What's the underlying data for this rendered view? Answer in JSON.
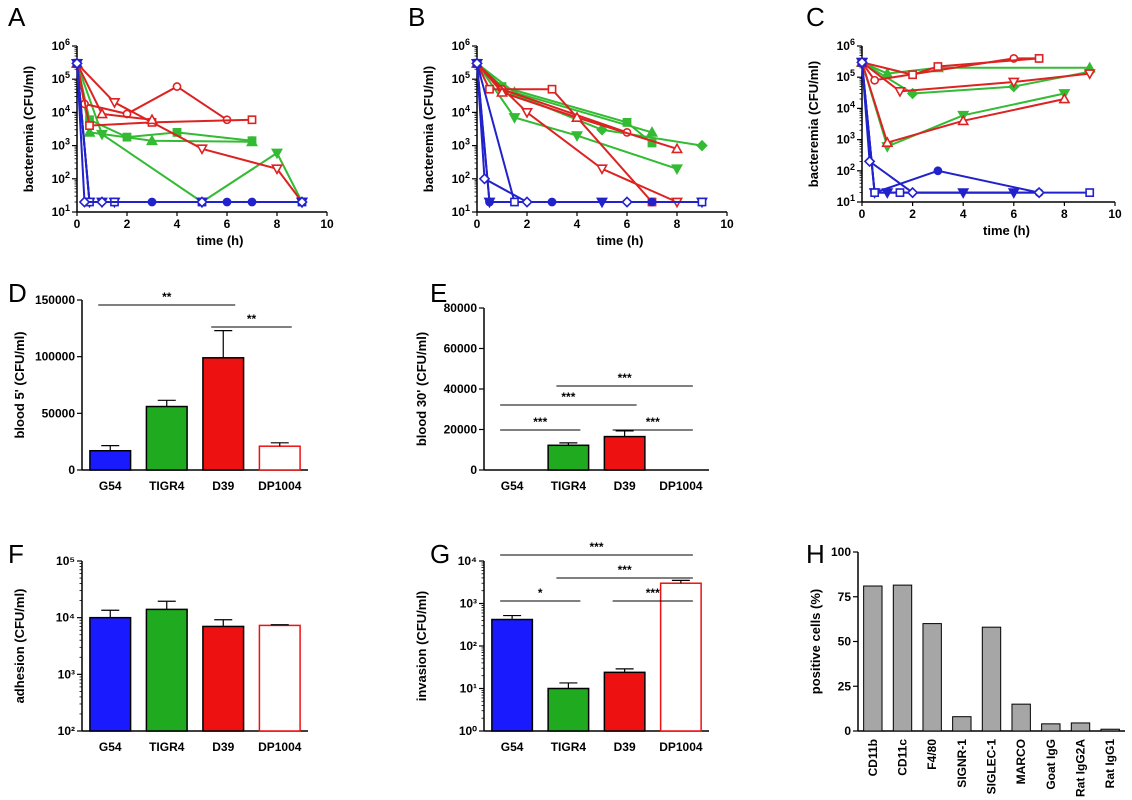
{
  "colors": {
    "G54": "#1a1aff",
    "TIGR4": "#1faa1f",
    "D39": "#ee1111",
    "DP1004": "#ee1111",
    "gray": "#a6a6a6",
    "green_line": "#33bb33",
    "red_line": "#dd2222",
    "blue_line": "#2222cc"
  },
  "chart_data": [
    {
      "panel": "A",
      "type": "line",
      "xlabel": "time (h)",
      "ylabel": "bacteremia (CFU/ml)",
      "xlim": [
        0,
        10
      ],
      "xticks": [
        "0",
        "2",
        "4",
        "6",
        "8",
        "10"
      ],
      "ylim_log10": [
        1,
        6
      ],
      "yscale": "log",
      "series": [
        {
          "group": "G54",
          "marker": "circle",
          "points": [
            [
              0,
              300000
            ],
            [
              0.5,
              20
            ],
            [
              3,
              20
            ],
            [
              6,
              20
            ],
            [
              7,
              20
            ]
          ]
        },
        {
          "group": "G54",
          "marker": "tri-down",
          "points": [
            [
              0,
              300000
            ],
            [
              0.5,
              20
            ],
            [
              1,
              20
            ],
            [
              1.5,
              20
            ],
            [
              5,
              20
            ],
            [
              9,
              20
            ]
          ]
        },
        {
          "group": "G54",
          "marker": "square-open",
          "points": [
            [
              0,
              300000
            ],
            [
              0.5,
              20
            ],
            [
              1.5,
              20
            ],
            [
              5,
              20
            ],
            [
              9,
              20
            ]
          ]
        },
        {
          "group": "G54",
          "marker": "diamond-open",
          "points": [
            [
              0,
              300000
            ],
            [
              0.3,
              20
            ],
            [
              1,
              20
            ],
            [
              5,
              20
            ],
            [
              9,
              20
            ]
          ]
        },
        {
          "group": "TIGR4",
          "marker": "square",
          "points": [
            [
              0,
              300000
            ],
            [
              0.5,
              6000
            ],
            [
              2,
              1800
            ],
            [
              4,
              2500
            ],
            [
              7,
              1400
            ]
          ]
        },
        {
          "group": "TIGR4",
          "marker": "tri-up",
          "points": [
            [
              0,
              300000
            ],
            [
              0.5,
              2500
            ],
            [
              3,
              1400
            ],
            [
              7,
              1300
            ]
          ]
        },
        {
          "group": "TIGR4",
          "marker": "tri-down",
          "points": [
            [
              0,
              300000
            ],
            [
              1,
              2200
            ],
            [
              5,
              20
            ],
            [
              8,
              600
            ],
            [
              9,
              20
            ]
          ]
        },
        {
          "group": "D39",
          "marker": "circle-open",
          "points": [
            [
              0,
              300000
            ],
            [
              0.3,
              18000
            ],
            [
              2,
              9000
            ],
            [
              4,
              60000
            ],
            [
              6,
              6000
            ]
          ]
        },
        {
          "group": "D39",
          "marker": "square-open",
          "points": [
            [
              0,
              300000
            ],
            [
              0.5,
              4000
            ],
            [
              3,
              5000
            ],
            [
              7,
              6000
            ]
          ]
        },
        {
          "group": "D39",
          "marker": "tri-down-open",
          "points": [
            [
              0,
              300000
            ],
            [
              1.5,
              20000
            ],
            [
              5,
              800
            ],
            [
              8,
              200
            ],
            [
              9,
              20
            ]
          ]
        },
        {
          "group": "DP1004",
          "marker": "tri-up-open",
          "points": [
            [
              0,
              300000
            ],
            [
              1,
              9000
            ],
            [
              3,
              6000
            ]
          ]
        }
      ]
    },
    {
      "panel": "B",
      "type": "line",
      "xlabel": "time (h)",
      "ylabel": "bacteremia (CFU/ml)",
      "xlim": [
        0,
        10
      ],
      "xticks": [
        "0",
        "2",
        "4",
        "6",
        "8",
        "10"
      ],
      "ylim_log10": [
        1,
        6
      ],
      "yscale": "log",
      "series": [
        {
          "group": "G54",
          "marker": "circle",
          "points": [
            [
              0,
              300000
            ],
            [
              0.5,
              20
            ],
            [
              3,
              20
            ],
            [
              7,
              20
            ]
          ]
        },
        {
          "group": "G54",
          "marker": "tri-down",
          "points": [
            [
              0,
              300000
            ],
            [
              0.5,
              20
            ],
            [
              5,
              20
            ],
            [
              9,
              20
            ]
          ]
        },
        {
          "group": "G54",
          "marker": "square-open",
          "points": [
            [
              0,
              300000
            ],
            [
              1.5,
              20
            ],
            [
              9,
              20
            ]
          ]
        },
        {
          "group": "G54",
          "marker": "diamond-open",
          "points": [
            [
              0,
              300000
            ],
            [
              0.3,
              100
            ],
            [
              2,
              20
            ],
            [
              6,
              20
            ]
          ]
        },
        {
          "group": "TIGR4",
          "marker": "square",
          "points": [
            [
              0,
              300000
            ],
            [
              1,
              60000
            ],
            [
              6,
              5000
            ],
            [
              7,
              1200
            ]
          ]
        },
        {
          "group": "TIGR4",
          "marker": "tri-up",
          "points": [
            [
              0,
              300000
            ],
            [
              1.5,
              40000
            ],
            [
              7,
              2500
            ]
          ]
        },
        {
          "group": "TIGR4",
          "marker": "diamond",
          "points": [
            [
              0,
              300000
            ],
            [
              1,
              50000
            ],
            [
              5,
              3000
            ],
            [
              9,
              1000
            ]
          ]
        },
        {
          "group": "TIGR4",
          "marker": "tri-down",
          "points": [
            [
              0,
              300000
            ],
            [
              1.5,
              7000
            ],
            [
              4,
              2000
            ],
            [
              8,
              200
            ]
          ]
        },
        {
          "group": "D39",
          "marker": "circle-open",
          "points": [
            [
              0,
              300000
            ],
            [
              1,
              50000
            ],
            [
              6,
              2500
            ]
          ]
        },
        {
          "group": "D39",
          "marker": "square-open",
          "points": [
            [
              0,
              300000
            ],
            [
              0.5,
              50000
            ],
            [
              3,
              50000
            ],
            [
              7,
              20
            ]
          ]
        },
        {
          "group": "D39",
          "marker": "tri-up-open",
          "points": [
            [
              0,
              300000
            ],
            [
              1,
              40000
            ],
            [
              4,
              7000
            ],
            [
              8,
              800
            ]
          ]
        },
        {
          "group": "D39",
          "marker": "tri-down-open",
          "points": [
            [
              0,
              300000
            ],
            [
              2,
              10000
            ],
            [
              5,
              200
            ],
            [
              8,
              20
            ]
          ]
        }
      ]
    },
    {
      "panel": "C",
      "type": "line",
      "xlabel": "time (h)",
      "ylabel": "bacteremia (CFU/ml)",
      "xlim": [
        0,
        10
      ],
      "xticks": [
        "0",
        "2",
        "4",
        "6",
        "8",
        "10"
      ],
      "ylim_log10": [
        1,
        6
      ],
      "yscale": "log",
      "series": [
        {
          "group": "G54",
          "marker": "circle",
          "points": [
            [
              0,
              300000
            ],
            [
              0.5,
              20
            ],
            [
              3,
              100
            ],
            [
              7,
              20
            ]
          ]
        },
        {
          "group": "G54",
          "marker": "tri-down",
          "points": [
            [
              0,
              300000
            ],
            [
              0.5,
              20
            ],
            [
              1,
              20
            ],
            [
              4,
              20
            ],
            [
              6,
              20
            ]
          ]
        },
        {
          "group": "G54",
          "marker": "square-open",
          "points": [
            [
              0,
              300000
            ],
            [
              0.5,
              20
            ],
            [
              1.5,
              20
            ],
            [
              9,
              20
            ]
          ]
        },
        {
          "group": "G54",
          "marker": "diamond-open",
          "points": [
            [
              0,
              300000
            ],
            [
              0.3,
              200
            ],
            [
              2,
              20
            ],
            [
              7,
              20
            ]
          ]
        },
        {
          "group": "TIGR4",
          "marker": "tri-up",
          "points": [
            [
              0,
              300000
            ],
            [
              1,
              130000
            ],
            [
              3,
              200000
            ],
            [
              9,
              200000
            ]
          ]
        },
        {
          "group": "TIGR4",
          "marker": "diamond",
          "points": [
            [
              0,
              300000
            ],
            [
              2,
              30000
            ],
            [
              6,
              50000
            ],
            [
              9,
              150000
            ]
          ]
        },
        {
          "group": "TIGR4",
          "marker": "tri-down",
          "points": [
            [
              0,
              300000
            ],
            [
              1,
              600
            ],
            [
              4,
              6000
            ],
            [
              8,
              30000
            ]
          ]
        },
        {
          "group": "D39",
          "marker": "circle-open",
          "points": [
            [
              0,
              300000
            ],
            [
              0.5,
              80000
            ],
            [
              6,
              400000
            ],
            [
              7,
              400000
            ]
          ]
        },
        {
          "group": "D39",
          "marker": "square-open",
          "points": [
            [
              0,
              300000
            ],
            [
              2,
              120000
            ],
            [
              3,
              220000
            ],
            [
              7,
              400000
            ]
          ]
        },
        {
          "group": "D39",
          "marker": "tri-down-open",
          "points": [
            [
              0,
              300000
            ],
            [
              1.5,
              35000
            ],
            [
              6,
              70000
            ],
            [
              9,
              130000
            ]
          ]
        },
        {
          "group": "D39",
          "marker": "tri-up-open",
          "points": [
            [
              0,
              300000
            ],
            [
              1,
              800
            ],
            [
              4,
              4000
            ],
            [
              8,
              20000
            ]
          ]
        }
      ]
    },
    {
      "panel": "D",
      "type": "bar",
      "ylabel": "blood 5' (CFU/ml)",
      "categories": [
        "G54",
        "TIGR4",
        "D39",
        "DP1004"
      ],
      "values": [
        17000,
        56000,
        99000,
        21000
      ],
      "errors": [
        4500,
        5500,
        24000,
        3000
      ],
      "fills": [
        "#1a1aff",
        "#1faa1f",
        "#ee1111",
        "#ffffff"
      ],
      "strokes": [
        "#000000",
        "#000000",
        "#000000",
        "#ee1111"
      ],
      "ylim": [
        0,
        150000
      ],
      "yticks": [
        "0",
        "50000",
        "100000",
        "150000"
      ],
      "significance": [
        {
          "from": 0,
          "to": 2,
          "label": "**",
          "level": 1
        },
        {
          "from": 2,
          "to": 3,
          "label": "**",
          "level": 0
        }
      ]
    },
    {
      "panel": "E",
      "type": "bar",
      "ylabel": "blood 30' (CFU/ml)",
      "categories": [
        "G54",
        "TIGR4",
        "D39",
        "DP1004"
      ],
      "values": [
        0,
        12200,
        16500,
        0
      ],
      "errors": [
        0,
        1200,
        2800,
        0
      ],
      "fills": [
        "#1a1aff",
        "#1faa1f",
        "#ee1111",
        "#ffffff"
      ],
      "strokes": [
        "#000000",
        "#000000",
        "#000000",
        "#ee1111"
      ],
      "ylim": [
        0,
        80000
      ],
      "yticks": [
        "0",
        "20000",
        "40000",
        "60000",
        "80000"
      ],
      "significance": [
        {
          "from": 0,
          "to": 1,
          "label": "***",
          "level": 0
        },
        {
          "from": 2,
          "to": 3,
          "label": "***",
          "level": 0
        },
        {
          "from": 0,
          "to": 2,
          "label": "***",
          "level": 1
        },
        {
          "from": 1,
          "to": 3,
          "label": "***",
          "level": 2
        }
      ]
    },
    {
      "panel": "F",
      "type": "bar",
      "yscale": "log",
      "ylabel": "adhesion (CFU/ml)",
      "categories": [
        "G54",
        "TIGR4",
        "D39",
        "DP1004"
      ],
      "values": [
        10000,
        14000,
        7000,
        7300
      ],
      "errors_upper": [
        13500,
        19500,
        9200,
        7500
      ],
      "fills": [
        "#1a1aff",
        "#1faa1f",
        "#ee1111",
        "#ffffff"
      ],
      "strokes": [
        "#000000",
        "#000000",
        "#000000",
        "#ee1111"
      ],
      "ylim_log10": [
        2,
        5
      ],
      "yticks": [
        "10²",
        "10³",
        "10⁴",
        "10⁵"
      ],
      "significance": []
    },
    {
      "panel": "G",
      "type": "bar",
      "yscale": "log",
      "ylabel": "invasion (CFU/ml)",
      "categories": [
        "G54",
        "TIGR4",
        "D39",
        "DP1004"
      ],
      "values": [
        420,
        10,
        24,
        3000
      ],
      "errors_upper": [
        520,
        13.5,
        29,
        3500
      ],
      "fills": [
        "#1a1aff",
        "#1faa1f",
        "#ee1111",
        "#ffffff"
      ],
      "strokes": [
        "#000000",
        "#000000",
        "#000000",
        "#ee1111"
      ],
      "ylim_log10": [
        0,
        4
      ],
      "yticks": [
        "10⁰",
        "10¹",
        "10²",
        "10³",
        "10⁴"
      ],
      "significance": [
        {
          "from": 0,
          "to": 1,
          "label": "*",
          "level": 0
        },
        {
          "from": 2,
          "to": 3,
          "label": "***",
          "level": 0
        },
        {
          "from": 1,
          "to": 3,
          "label": "***",
          "level": 1
        },
        {
          "from": 0,
          "to": 3,
          "label": "***",
          "level": 2
        }
      ]
    },
    {
      "panel": "H",
      "type": "bar",
      "ylabel": "positive cells (%)",
      "categories": [
        "CD11b",
        "CD11c",
        "F4/80",
        "SIGNR-1",
        "SIGLEC-1",
        "MARCO",
        "Goat IgG",
        "Rat IgG2A",
        "Rat IgG1"
      ],
      "values": [
        81,
        81.5,
        60,
        8,
        58,
        15,
        4,
        4.5,
        1
      ],
      "ylim": [
        0,
        100
      ],
      "yticks": [
        "0",
        "25",
        "50",
        "75",
        "100"
      ],
      "significance": []
    }
  ]
}
